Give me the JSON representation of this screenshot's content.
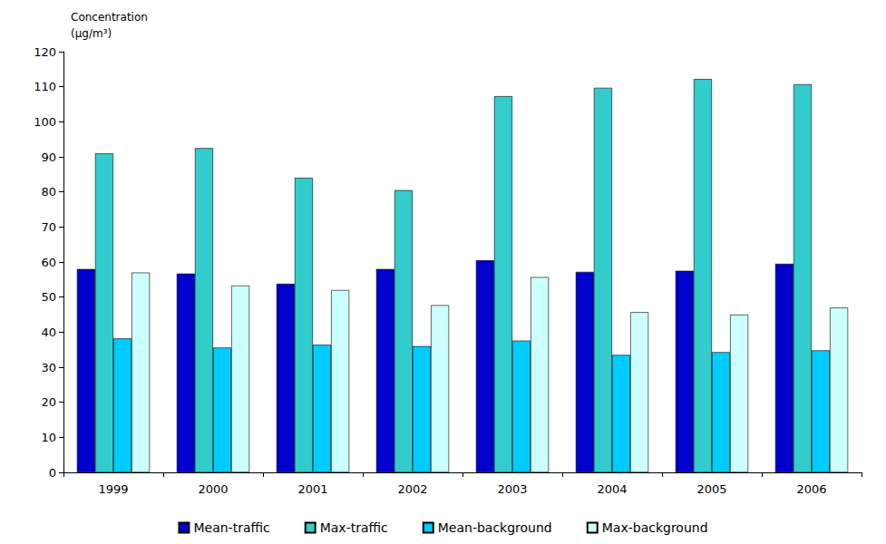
{
  "chart_data": {
    "type": "bar",
    "ylabel": "Concentration\n(µg/m³)",
    "categories": [
      "1999",
      "2000",
      "2001",
      "2002",
      "2003",
      "2004",
      "2005",
      "2006"
    ],
    "series": [
      {
        "name": "Mean-traffic",
        "color": "#0000cc",
        "values": [
          58,
          56.7,
          53.8,
          58,
          60.5,
          57.2,
          57.5,
          59.5
        ]
      },
      {
        "name": "Max-traffic",
        "color": "#33cccc",
        "values": [
          91,
          92.5,
          84,
          80.5,
          107.3,
          109.7,
          112.2,
          110.7
        ]
      },
      {
        "name": "Mean-background",
        "color": "#00ccff",
        "values": [
          38.2,
          35.6,
          36.4,
          36,
          37.6,
          33.5,
          34.3,
          34.8
        ]
      },
      {
        "name": "Max-background",
        "color": "#ccffff",
        "values": [
          57,
          53.3,
          52,
          47.7,
          55.7,
          45.7,
          45,
          47
        ]
      }
    ],
    "ylim": [
      0,
      120
    ],
    "yticks": [
      0,
      10,
      20,
      30,
      40,
      50,
      60,
      70,
      80,
      90,
      100,
      110,
      120
    ],
    "grid": false,
    "legend": "bottom"
  }
}
